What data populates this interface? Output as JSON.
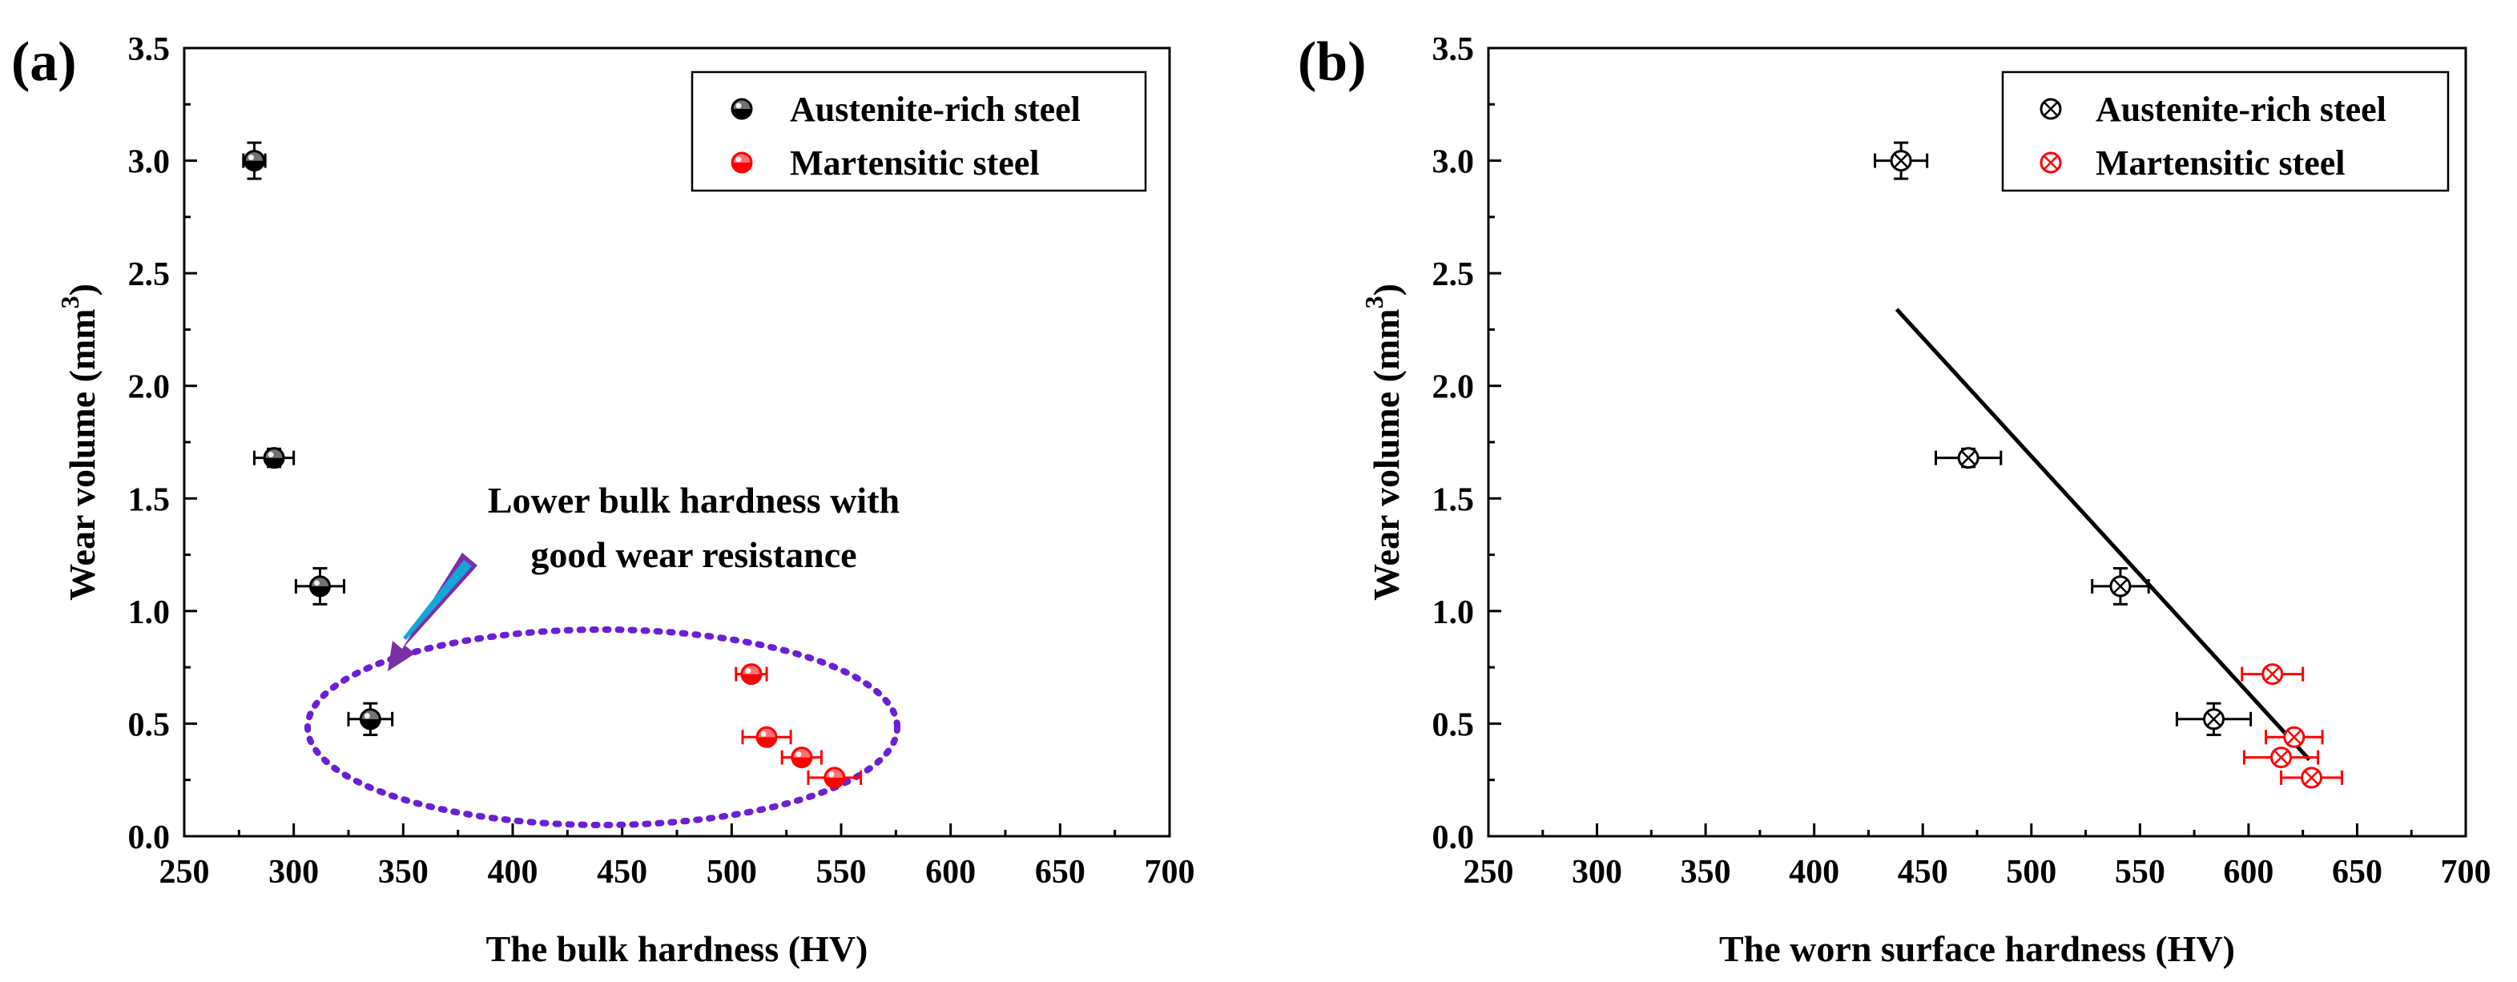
{
  "chart_data": [
    {
      "panel_label": "(a)",
      "type": "scatter",
      "xlabel": "The bulk hardness (HV)",
      "ylabel_main": "Wear volume (mm",
      "ylabel_sup": "3",
      "ylabel_close": ")",
      "xlim": [
        250,
        700
      ],
      "ylim": [
        0.0,
        3.5
      ],
      "xticks": [
        "250",
        "300",
        "350",
        "400",
        "450",
        "500",
        "550",
        "600",
        "650",
        "700"
      ],
      "yticks": [
        "0.0",
        "0.5",
        "1.0",
        "1.5",
        "2.0",
        "2.5",
        "3.0",
        "3.5"
      ],
      "legend_position": "top-right",
      "annotation": [
        "Lower bulk hardness with",
        "good wear resistance"
      ],
      "series": [
        {
          "name": "Austenite-rich steel",
          "color": "#000000",
          "marker": "half-filled circle",
          "points": [
            {
              "x": 282,
              "y": 3.0,
              "xerr": 5,
              "yerr": 0.08
            },
            {
              "x": 291,
              "y": 1.68,
              "xerr": 9,
              "yerr": 0.04
            },
            {
              "x": 312,
              "y": 1.11,
              "xerr": 11,
              "yerr": 0.08
            },
            {
              "x": 335,
              "y": 0.52,
              "xerr": 10,
              "yerr": 0.07
            }
          ]
        },
        {
          "name": "Martensitic steel",
          "color": "#ff0000",
          "marker": "half-filled circle",
          "points": [
            {
              "x": 509,
              "y": 0.72,
              "xerr": 7,
              "yerr": 0.03
            },
            {
              "x": 516,
              "y": 0.44,
              "xerr": 11,
              "yerr": 0.03
            },
            {
              "x": 532,
              "y": 0.35,
              "xerr": 9,
              "yerr": 0.03
            },
            {
              "x": 547,
              "y": 0.26,
              "xerr": 12,
              "yerr": 0.02
            }
          ]
        }
      ]
    },
    {
      "panel_label": "(b)",
      "type": "scatter",
      "xlabel": "The worn surface hardness (HV)",
      "ylabel_main": "Wear volume (mm",
      "ylabel_sup": "3",
      "ylabel_close": ")",
      "xlim": [
        250,
        700
      ],
      "ylim": [
        0.0,
        3.5
      ],
      "xticks": [
        "250",
        "300",
        "350",
        "400",
        "450",
        "500",
        "550",
        "600",
        "650",
        "700"
      ],
      "yticks": [
        "0.0",
        "0.5",
        "1.0",
        "1.5",
        "2.0",
        "2.5",
        "3.0",
        "3.5"
      ],
      "legend_position": "top-right",
      "series": [
        {
          "name": "Austenite-rich steel",
          "color": "#000000",
          "marker": "crossed circle",
          "points": [
            {
              "x": 440,
              "y": 3.0,
              "xerr": 12,
              "yerr": 0.08
            },
            {
              "x": 471,
              "y": 1.68,
              "xerr": 15,
              "yerr": 0.04
            },
            {
              "x": 541,
              "y": 1.11,
              "xerr": 13,
              "yerr": 0.08
            },
            {
              "x": 584,
              "y": 0.52,
              "xerr": 17,
              "yerr": 0.07
            }
          ]
        },
        {
          "name": "Martensitic steel",
          "color": "#ff0000",
          "marker": "crossed circle",
          "points": [
            {
              "x": 611,
              "y": 0.72,
              "xerr": 14,
              "yerr": 0.03
            },
            {
              "x": 621,
              "y": 0.44,
              "xerr": 13,
              "yerr": 0.03
            },
            {
              "x": 615,
              "y": 0.35,
              "xerr": 17,
              "yerr": 0.03
            },
            {
              "x": 629,
              "y": 0.26,
              "xerr": 14,
              "yerr": 0.02
            }
          ]
        }
      ],
      "fit_line": {
        "x": [
          438,
          628
        ],
        "y": [
          2.34,
          0.34
        ],
        "color": "#000000"
      }
    }
  ]
}
